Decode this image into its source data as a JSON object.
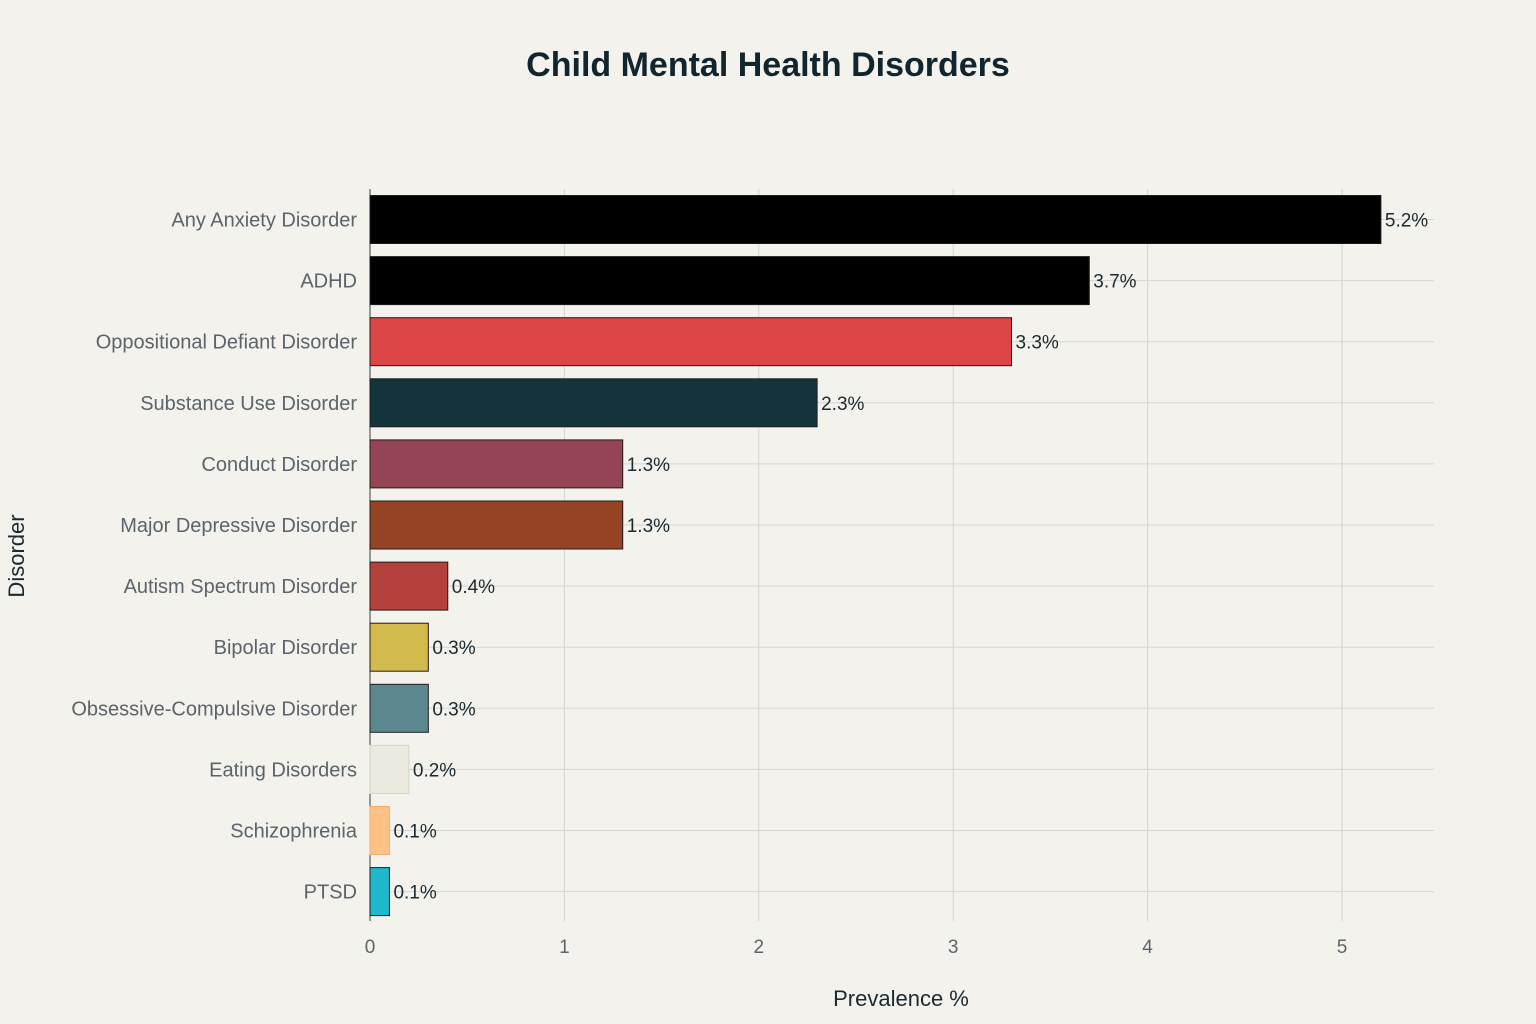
{
  "chart_data": {
    "type": "bar",
    "orientation": "horizontal",
    "title": "Child Mental Health Disorders",
    "xlabel": "Prevalence %",
    "ylabel": "Disorder",
    "xlim": [
      0,
      5.5
    ],
    "xticks": [
      0,
      1,
      2,
      3,
      4,
      5
    ],
    "grid": true,
    "categories": [
      "Any Anxiety Disorder",
      "ADHD",
      "Oppositional Defiant Disorder",
      "Substance Use Disorder",
      "Conduct Disorder",
      "Major Depressive Disorder",
      "Autism Spectrum Disorder",
      "Bipolar Disorder",
      "Obsessive-Compulsive Disorder",
      "Eating Disorders",
      "Schizophrenia",
      "PTSD"
    ],
    "values": [
      5.2,
      3.7,
      3.3,
      2.3,
      1.3,
      1.3,
      0.4,
      0.3,
      0.3,
      0.2,
      0.1,
      0.1
    ],
    "data_labels": [
      "5.2%",
      "3.7%",
      "3.3%",
      "2.3%",
      "1.3%",
      "1.3%",
      "0.4%",
      "0.3%",
      "0.3%",
      "0.2%",
      "0.1%",
      "0.1%"
    ],
    "colors": [
      "#000000",
      "#000000",
      "#db4545",
      "#13343b",
      "#944454",
      "#964325",
      "#b4413c",
      "#d2ba4c",
      "#5d878f",
      "#eceadf",
      "#ffc185",
      "#1fb8cd"
    ]
  }
}
